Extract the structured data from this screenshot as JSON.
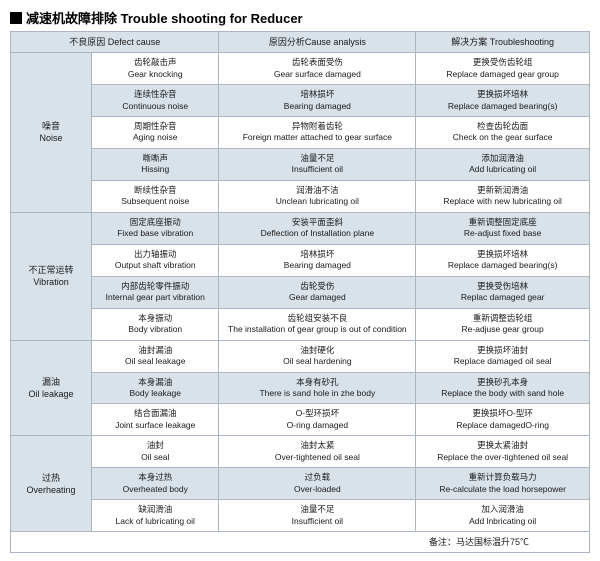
{
  "title": "减速机故障排除 Trouble shooting for Reducer",
  "headers": {
    "defect": "不良原因   Defect cause",
    "analysis": "原因分析Cause analysis",
    "trouble": "解决方案 Troubleshooting"
  },
  "categories": [
    {
      "zh": "噪音",
      "en": "Noise"
    },
    {
      "zh": "不正常运转",
      "en": "Vibration"
    },
    {
      "zh": "漏油",
      "en": "Oil leakage"
    },
    {
      "zh": "过热",
      "en": "Overheating"
    }
  ],
  "rows": {
    "noise": [
      {
        "d_zh": "齿轮敲击声",
        "d_en": "Gear knocking",
        "a_zh": "齿轮表面受伤",
        "a_en": "Gear surface damaged",
        "t_zh": "更换受伤齿轮组",
        "t_en": "Replace damaged gear group"
      },
      {
        "d_zh": "连续性杂音",
        "d_en": "Continuous noise",
        "a_zh": "培林损坏",
        "a_en": "Bearing damaged",
        "t_zh": "更换损坏培林",
        "t_en": "Replace damaged bearing(s)"
      },
      {
        "d_zh": "周期性杂音",
        "d_en": "Aging noise",
        "a_zh": "异物附着齿轮",
        "a_en": "Foreign matter attached to gear surface",
        "t_zh": "检查齿轮齿面",
        "t_en": "Check on the gear surface"
      },
      {
        "d_zh": "嘶嘶声",
        "d_en": "Hissing",
        "a_zh": "油量不足",
        "a_en": "Insufficient oil",
        "t_zh": "添加润滑油",
        "t_en": "Add lubricating oil"
      },
      {
        "d_zh": "断续性杂音",
        "d_en": "Subsequent noise",
        "a_zh": "润滑油不洁",
        "a_en": "Unclean lubricating oil",
        "t_zh": "更新新润滑油",
        "t_en": "Replace with new lubricating oil"
      }
    ],
    "vibration": [
      {
        "d_zh": "固定底座振动",
        "d_en": "Fixed base vibration",
        "a_zh": "安装平面歪斜",
        "a_en": "Deflection of Installation plane",
        "t_zh": "重新调整固定底座",
        "t_en": "Re-adjust fixed base"
      },
      {
        "d_zh": "出力轴振动",
        "d_en": "Output shaft vibration",
        "a_zh": "培林损坏",
        "a_en": "Bearing damaged",
        "t_zh": "更换损坏培林",
        "t_en": "Replace damaged bearing(s)"
      },
      {
        "d_zh": "内部齿轮零件振动",
        "d_en": "Internal gear part vibration",
        "a_zh": "齿轮受伤",
        "a_en": "Gear damaged",
        "t_zh": "更换受伤培林",
        "t_en": "Replac damaged gear"
      },
      {
        "d_zh": "本身振动",
        "d_en": "Body vibration",
        "a_zh": "齿轮组安装不良",
        "a_en": "The installation of gear group is out of condition",
        "t_zh": "重新调整齿轮组",
        "t_en": "Re-adjuse gear group"
      }
    ],
    "oil": [
      {
        "d_zh": "油封漏油",
        "d_en": "Oil seal leakage",
        "a_zh": "油封硬化",
        "a_en": "Oil seal hardening",
        "t_zh": "更换损坏油封",
        "t_en": "Replace damaged oil seal"
      },
      {
        "d_zh": "本身漏油",
        "d_en": "Body leakage",
        "a_zh": "本身有砂孔",
        "a_en": "There is sand hole in zhe body",
        "t_zh": "更换砂孔本身",
        "t_en": "Replace the body with sand hole"
      },
      {
        "d_zh": "结合面漏油",
        "d_en": "Joint surface leakage",
        "a_zh": "O-型环损坏",
        "a_en": "O-ring damaged",
        "t_zh": "更换损坏O-型环",
        "t_en": "Replace damagedO-ring"
      }
    ],
    "heat": [
      {
        "d_zh": "油封",
        "d_en": "Oil seal",
        "a_zh": "油封太紧",
        "a_en": "Over-tightened oil seal",
        "t_zh": "更换太紧油封",
        "t_en": "Replace the over-tightened oil seal"
      },
      {
        "d_zh": "本身过热",
        "d_en": "Overheated body",
        "a_zh": "过负载",
        "a_en": "Over-loaded",
        "t_zh": "重新计算负载马力",
        "t_en": "Re-calculate the load horsepower"
      },
      {
        "d_zh": "缺润滑油",
        "d_en": "Lack of lubricating oil",
        "a_zh": "油量不足",
        "a_en": "Insufficient oil",
        "t_zh": "加入润滑油",
        "t_en": "Add lnbricating oil"
      }
    ]
  },
  "footnote": "备注：马达国标温升75℃"
}
